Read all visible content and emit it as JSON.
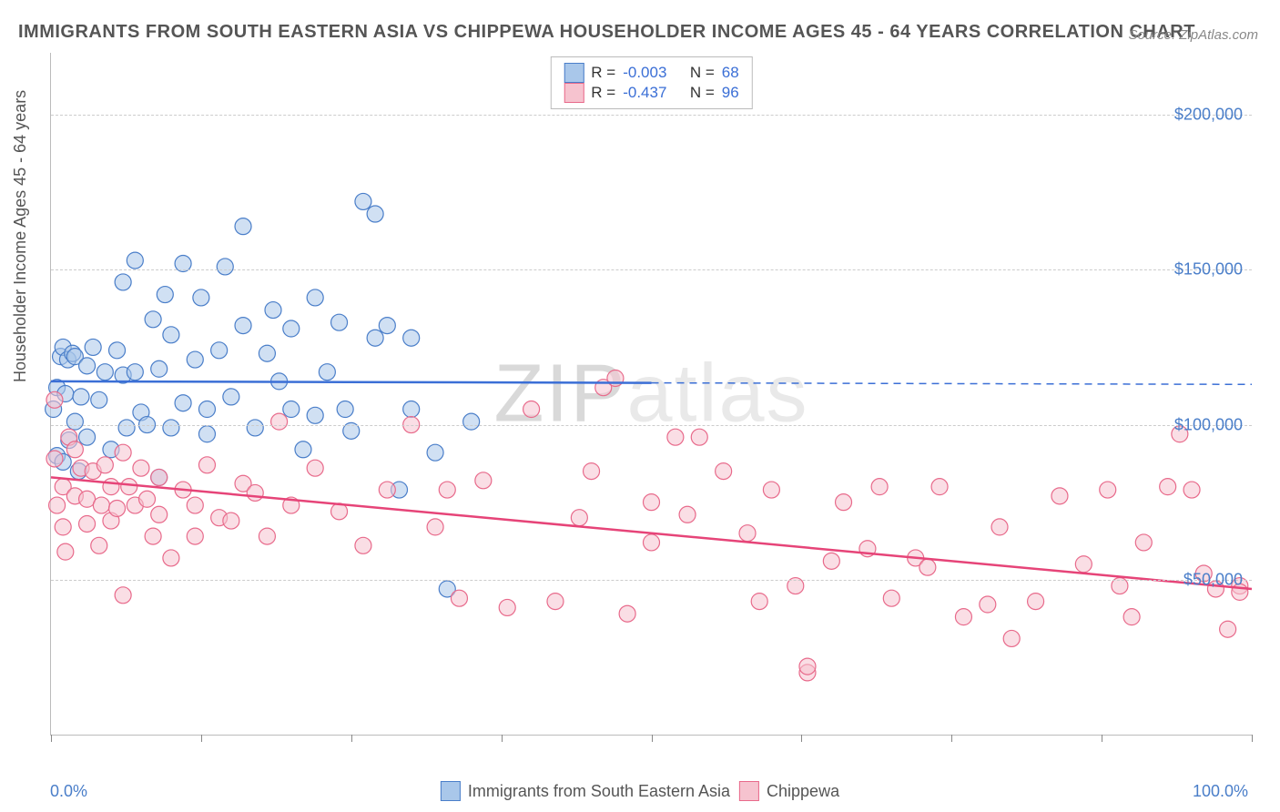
{
  "title": "IMMIGRANTS FROM SOUTH EASTERN ASIA VS CHIPPEWA HOUSEHOLDER INCOME AGES 45 - 64 YEARS CORRELATION CHART",
  "source": "Source: ZipAtlas.com",
  "watermark_zip": "ZIP",
  "watermark_atlas": "atlas",
  "y_axis_title": "Householder Income Ages 45 - 64 years",
  "x_axis": {
    "min_label": "0.0%",
    "max_label": "100.0%",
    "min": 0,
    "max": 100,
    "tick_positions_pct": [
      0,
      12.5,
      25,
      37.5,
      50,
      62.5,
      75,
      87.5,
      100
    ]
  },
  "y_axis": {
    "min": 0,
    "max": 220000,
    "gridlines": [
      50000,
      100000,
      150000,
      200000
    ],
    "tick_labels": [
      "$50,000",
      "$100,000",
      "$150,000",
      "$200,000"
    ]
  },
  "legend_top": {
    "series1": {
      "swatch_fill": "#a9c7ea",
      "swatch_stroke": "#4a7ec9",
      "r_label": "R =",
      "r_value": "-0.003",
      "n_label": "N =",
      "n_value": "68"
    },
    "series2": {
      "swatch_fill": "#f6c3cf",
      "swatch_stroke": "#e86a8b",
      "r_label": "R =",
      "r_value": "-0.437",
      "n_label": "N =",
      "n_value": "96"
    }
  },
  "legend_bottom": {
    "series1_label": "Immigrants from South Eastern Asia",
    "series2_label": "Chippewa"
  },
  "chart": {
    "type": "scatter",
    "background_color": "#ffffff",
    "grid_color": "#cccccc",
    "marker_radius": 9,
    "marker_opacity": 0.55,
    "series": [
      {
        "name": "Immigrants from South Eastern Asia",
        "marker_fill": "#a9c7ea",
        "marker_stroke": "#4a7ec9",
        "regression": {
          "y_at_x0": 114000,
          "y_at_x50": 113500,
          "dashed_extension_to": 100,
          "stroke": "#3b6fd6",
          "stroke_width": 2.5
        },
        "points": [
          [
            0.2,
            105000
          ],
          [
            0.5,
            112000
          ],
          [
            0.5,
            90000
          ],
          [
            0.8,
            122000
          ],
          [
            1,
            88000
          ],
          [
            1,
            125000
          ],
          [
            1.2,
            110000
          ],
          [
            1.4,
            121000
          ],
          [
            1.5,
            95000
          ],
          [
            1.8,
            123000
          ],
          [
            2,
            122000
          ],
          [
            2,
            101000
          ],
          [
            2.3,
            85000
          ],
          [
            2.5,
            109000
          ],
          [
            3,
            119000
          ],
          [
            3,
            96000
          ],
          [
            3.5,
            125000
          ],
          [
            4,
            108000
          ],
          [
            4.5,
            117000
          ],
          [
            5,
            92000
          ],
          [
            5.5,
            124000
          ],
          [
            6,
            116000
          ],
          [
            6,
            146000
          ],
          [
            6.3,
            99000
          ],
          [
            7,
            153000
          ],
          [
            7,
            117000
          ],
          [
            7.5,
            104000
          ],
          [
            8,
            100000
          ],
          [
            8.5,
            134000
          ],
          [
            9,
            118000
          ],
          [
            9,
            83000
          ],
          [
            9.5,
            142000
          ],
          [
            10,
            129000
          ],
          [
            10,
            99000
          ],
          [
            11,
            152000
          ],
          [
            11,
            107000
          ],
          [
            12,
            121000
          ],
          [
            12.5,
            141000
          ],
          [
            13,
            105000
          ],
          [
            13,
            97000
          ],
          [
            14,
            124000
          ],
          [
            14.5,
            151000
          ],
          [
            15,
            109000
          ],
          [
            16,
            164000
          ],
          [
            16,
            132000
          ],
          [
            17,
            99000
          ],
          [
            18,
            123000
          ],
          [
            18.5,
            137000
          ],
          [
            19,
            114000
          ],
          [
            20,
            105000
          ],
          [
            20,
            131000
          ],
          [
            21,
            92000
          ],
          [
            22,
            103000
          ],
          [
            22,
            141000
          ],
          [
            23,
            117000
          ],
          [
            24,
            133000
          ],
          [
            24.5,
            105000
          ],
          [
            25,
            98000
          ],
          [
            26,
            172000
          ],
          [
            27,
            168000
          ],
          [
            27,
            128000
          ],
          [
            28,
            132000
          ],
          [
            29,
            79000
          ],
          [
            30,
            105000
          ],
          [
            30,
            128000
          ],
          [
            32,
            91000
          ],
          [
            33,
            47000
          ],
          [
            35,
            101000
          ]
        ]
      },
      {
        "name": "Chippewa",
        "marker_fill": "#f6c3cf",
        "marker_stroke": "#e86a8b",
        "regression": {
          "y_at_x0": 83000,
          "y_at_x100": 47000,
          "stroke": "#e64478",
          "stroke_width": 2.5
        },
        "points": [
          [
            0.3,
            108000
          ],
          [
            0.3,
            89000
          ],
          [
            0.5,
            74000
          ],
          [
            1,
            80000
          ],
          [
            1,
            67000
          ],
          [
            1.2,
            59000
          ],
          [
            1.5,
            96000
          ],
          [
            2,
            92000
          ],
          [
            2,
            77000
          ],
          [
            2.5,
            86000
          ],
          [
            3,
            68000
          ],
          [
            3,
            76000
          ],
          [
            3.5,
            85000
          ],
          [
            4,
            61000
          ],
          [
            4.2,
            74000
          ],
          [
            4.5,
            87000
          ],
          [
            5,
            80000
          ],
          [
            5,
            69000
          ],
          [
            5.5,
            73000
          ],
          [
            6,
            91000
          ],
          [
            6,
            45000
          ],
          [
            6.5,
            80000
          ],
          [
            7,
            74000
          ],
          [
            7.5,
            86000
          ],
          [
            8,
            76000
          ],
          [
            8.5,
            64000
          ],
          [
            9,
            83000
          ],
          [
            9,
            71000
          ],
          [
            10,
            57000
          ],
          [
            11,
            79000
          ],
          [
            12,
            74000
          ],
          [
            12,
            64000
          ],
          [
            13,
            87000
          ],
          [
            14,
            70000
          ],
          [
            15,
            69000
          ],
          [
            16,
            81000
          ],
          [
            17,
            78000
          ],
          [
            18,
            64000
          ],
          [
            19,
            101000
          ],
          [
            20,
            74000
          ],
          [
            22,
            86000
          ],
          [
            24,
            72000
          ],
          [
            26,
            61000
          ],
          [
            28,
            79000
          ],
          [
            30,
            100000
          ],
          [
            32,
            67000
          ],
          [
            33,
            79000
          ],
          [
            34,
            44000
          ],
          [
            36,
            82000
          ],
          [
            38,
            41000
          ],
          [
            40,
            105000
          ],
          [
            42,
            43000
          ],
          [
            44,
            70000
          ],
          [
            45,
            85000
          ],
          [
            46,
            112000
          ],
          [
            47,
            115000
          ],
          [
            48,
            39000
          ],
          [
            50,
            62000
          ],
          [
            50,
            75000
          ],
          [
            52,
            96000
          ],
          [
            53,
            71000
          ],
          [
            54,
            96000
          ],
          [
            56,
            85000
          ],
          [
            58,
            65000
          ],
          [
            59,
            43000
          ],
          [
            60,
            79000
          ],
          [
            62,
            48000
          ],
          [
            63,
            20000
          ],
          [
            63,
            22000
          ],
          [
            65,
            56000
          ],
          [
            66,
            75000
          ],
          [
            68,
            60000
          ],
          [
            69,
            80000
          ],
          [
            70,
            44000
          ],
          [
            72,
            57000
          ],
          [
            73,
            54000
          ],
          [
            74,
            80000
          ],
          [
            76,
            38000
          ],
          [
            78,
            42000
          ],
          [
            79,
            67000
          ],
          [
            80,
            31000
          ],
          [
            82,
            43000
          ],
          [
            84,
            77000
          ],
          [
            86,
            55000
          ],
          [
            88,
            79000
          ],
          [
            89,
            48000
          ],
          [
            90,
            38000
          ],
          [
            91,
            62000
          ],
          [
            93,
            80000
          ],
          [
            94,
            97000
          ],
          [
            95,
            79000
          ],
          [
            96,
            52000
          ],
          [
            97,
            47000
          ],
          [
            98,
            34000
          ],
          [
            99,
            48000
          ],
          [
            99,
            46000
          ]
        ]
      }
    ]
  }
}
